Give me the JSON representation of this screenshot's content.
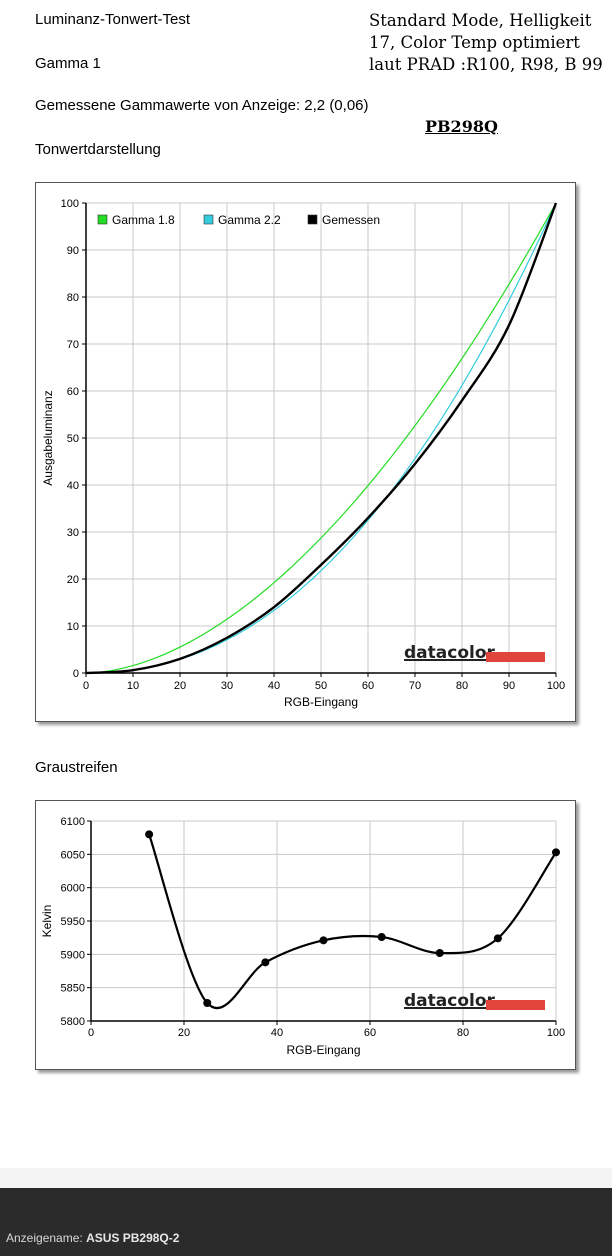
{
  "header": {
    "report_title": "Luminanz-Tonwert-Test",
    "gamma_setting": "Gamma 1",
    "measured_gamma": "Gemessene Gammawerte von Anzeige: 2,2 (0,06)",
    "section_tone": "Tonwertdarstellung",
    "note_lines": [
      "Standard Mode, Helligkeit",
      "17, Color Temp optimiert",
      "laut PRAD :R100, R98, B 99"
    ],
    "model": "PB298Q"
  },
  "section_gray": "Graustreifen",
  "logo_text": "datacolor",
  "colors": {
    "gamma18": "#22dd22",
    "gamma22": "#33ccdd",
    "measured": "#000000",
    "logo_bar": "#e0443a",
    "grid": "#c8c8c8"
  },
  "chart_data": [
    {
      "type": "line",
      "xlabel": "RGB-Eingang",
      "ylabel": "Ausgabeluminanz",
      "xlim": [
        0,
        100
      ],
      "ylim": [
        0,
        100
      ],
      "xticks": [
        0,
        10,
        20,
        30,
        40,
        50,
        60,
        70,
        80,
        90,
        100
      ],
      "yticks": [
        0,
        10,
        20,
        30,
        40,
        50,
        60,
        70,
        80,
        90,
        100
      ],
      "grid": true,
      "legend_position": "top-left",
      "series": [
        {
          "name": "Gamma 1.8",
          "color": "#22dd22",
          "gamma": 1.8
        },
        {
          "name": "Gamma 2.2",
          "color": "#33ccdd",
          "gamma": 2.2
        },
        {
          "name": "Gemessen",
          "color": "#000000",
          "x": [
            0,
            10,
            20,
            30,
            40,
            50,
            60,
            70,
            80,
            90,
            100
          ],
          "y": [
            0,
            0.6,
            3,
            7.5,
            14,
            23,
            33,
            44.5,
            58,
            74,
            100
          ]
        }
      ]
    },
    {
      "type": "line",
      "xlabel": "RGB-Eingang",
      "ylabel": "Kelvin",
      "xlim": [
        0,
        100
      ],
      "ylim": [
        5800,
        6100
      ],
      "xticks": [
        0,
        20,
        40,
        60,
        80,
        100
      ],
      "yticks": [
        5800,
        5850,
        5900,
        5950,
        6000,
        6050,
        6100
      ],
      "grid": true,
      "series": [
        {
          "color": "#000000",
          "x": [
            12.5,
            25,
            37.5,
            50,
            62.5,
            75,
            87.5,
            100
          ],
          "y": [
            6080,
            5827,
            5888,
            5921,
            5926,
            5902,
            5924,
            6053
          ]
        }
      ]
    }
  ],
  "status_bar": {
    "label": "Anzeigename:",
    "value": "ASUS PB298Q-2"
  }
}
